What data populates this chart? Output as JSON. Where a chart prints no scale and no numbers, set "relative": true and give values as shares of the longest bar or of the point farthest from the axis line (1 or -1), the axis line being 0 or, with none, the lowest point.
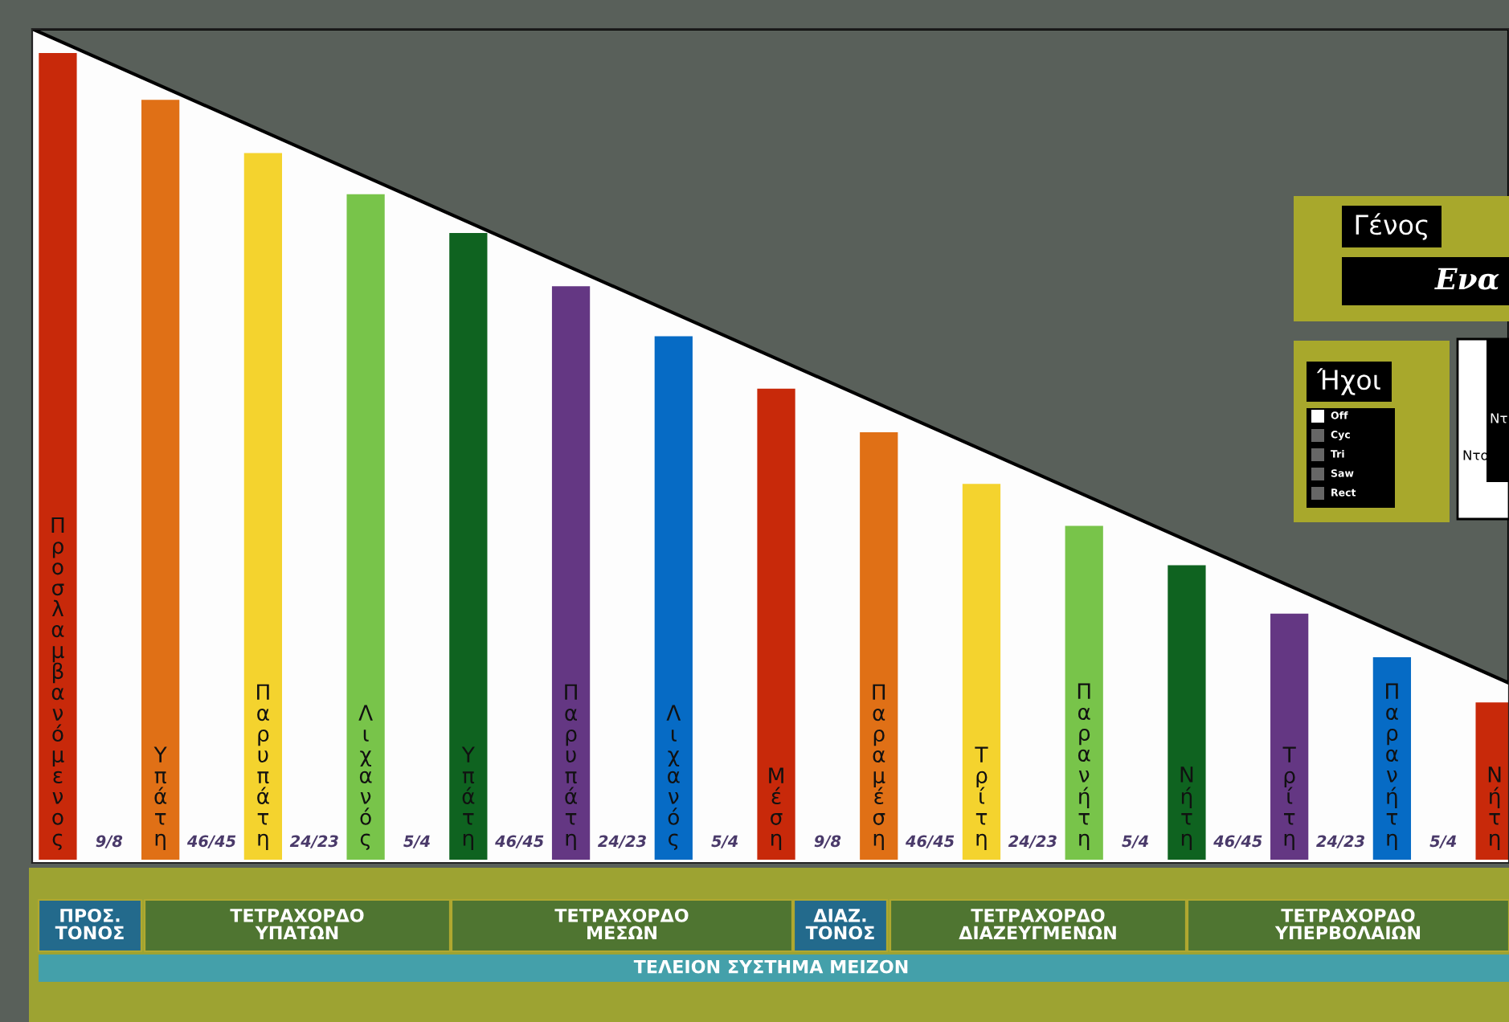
{
  "chart_data": {
    "type": "bar",
    "relative": true,
    "categories": [
      "Προσλαμβανόμενος",
      "Υπάτη",
      "Παρυπάτη",
      "Λιχανός",
      "Υπάτη",
      "Παρυπάτη",
      "Λιχανός",
      "Μέση",
      "Παραμέση",
      "Τρίτη",
      "Παρανήτη",
      "Νήτη",
      "Τρίτη",
      "Παρανήτη",
      "Νήτη"
    ],
    "values": [
      1,
      0.942,
      0.876,
      0.825,
      0.777,
      0.711,
      0.649,
      0.584,
      0.53,
      0.466,
      0.414,
      0.365,
      0.305,
      0.251,
      0.195
    ],
    "colors": [
      "#c8290a",
      "#e07016",
      "#f4d32e",
      "#78c44a",
      "#0f6320",
      "#643783",
      "#066bc5",
      "#c8290a",
      "#e07016",
      "#f4d32e",
      "#78c44a",
      "#0f6320",
      "#643783",
      "#066bc5",
      "#c8290a"
    ],
    "annotations": [
      "9/8",
      "46/45",
      "24/23",
      "5/4",
      "46/45",
      "24/23",
      "5/4",
      "9/8",
      "46/45",
      "24/23",
      "5/4",
      "46/45",
      "24/23",
      "5/4",
      "ΠΡΟΣ.\nΤΟΝΟΣ",
      "ΤΕΤΡΑΧΟΡΔΟ\nΥΠΑΤΩΝ",
      "ΤΕΤΡΑΧΟΡΔΟ\nΜΕΣΩΝ",
      "ΔΙΑΖ.\nΤΟΝΟΣ",
      "ΤΕΤΡΑΧΟΡΔΟ\nΔΙΑΖΕΥΓΜΕΝΩΝ",
      "ΤΕΤΡΑΧΟΡΔΟ\nΥΠΕΡΒΟΛΑΙΩΝ",
      "ΤΕΛΕΙΟΝ ΣΥΣΤΗΜΑ ΜΕΙΖΟΝ",
      "Γένος",
      "Ενα",
      "Ήχοι",
      "Off",
      "Cyc",
      "Tri",
      "Saw",
      "Rect",
      "Ντ",
      "Ντο"
    ],
    "legend": false,
    "grid": false
  }
}
